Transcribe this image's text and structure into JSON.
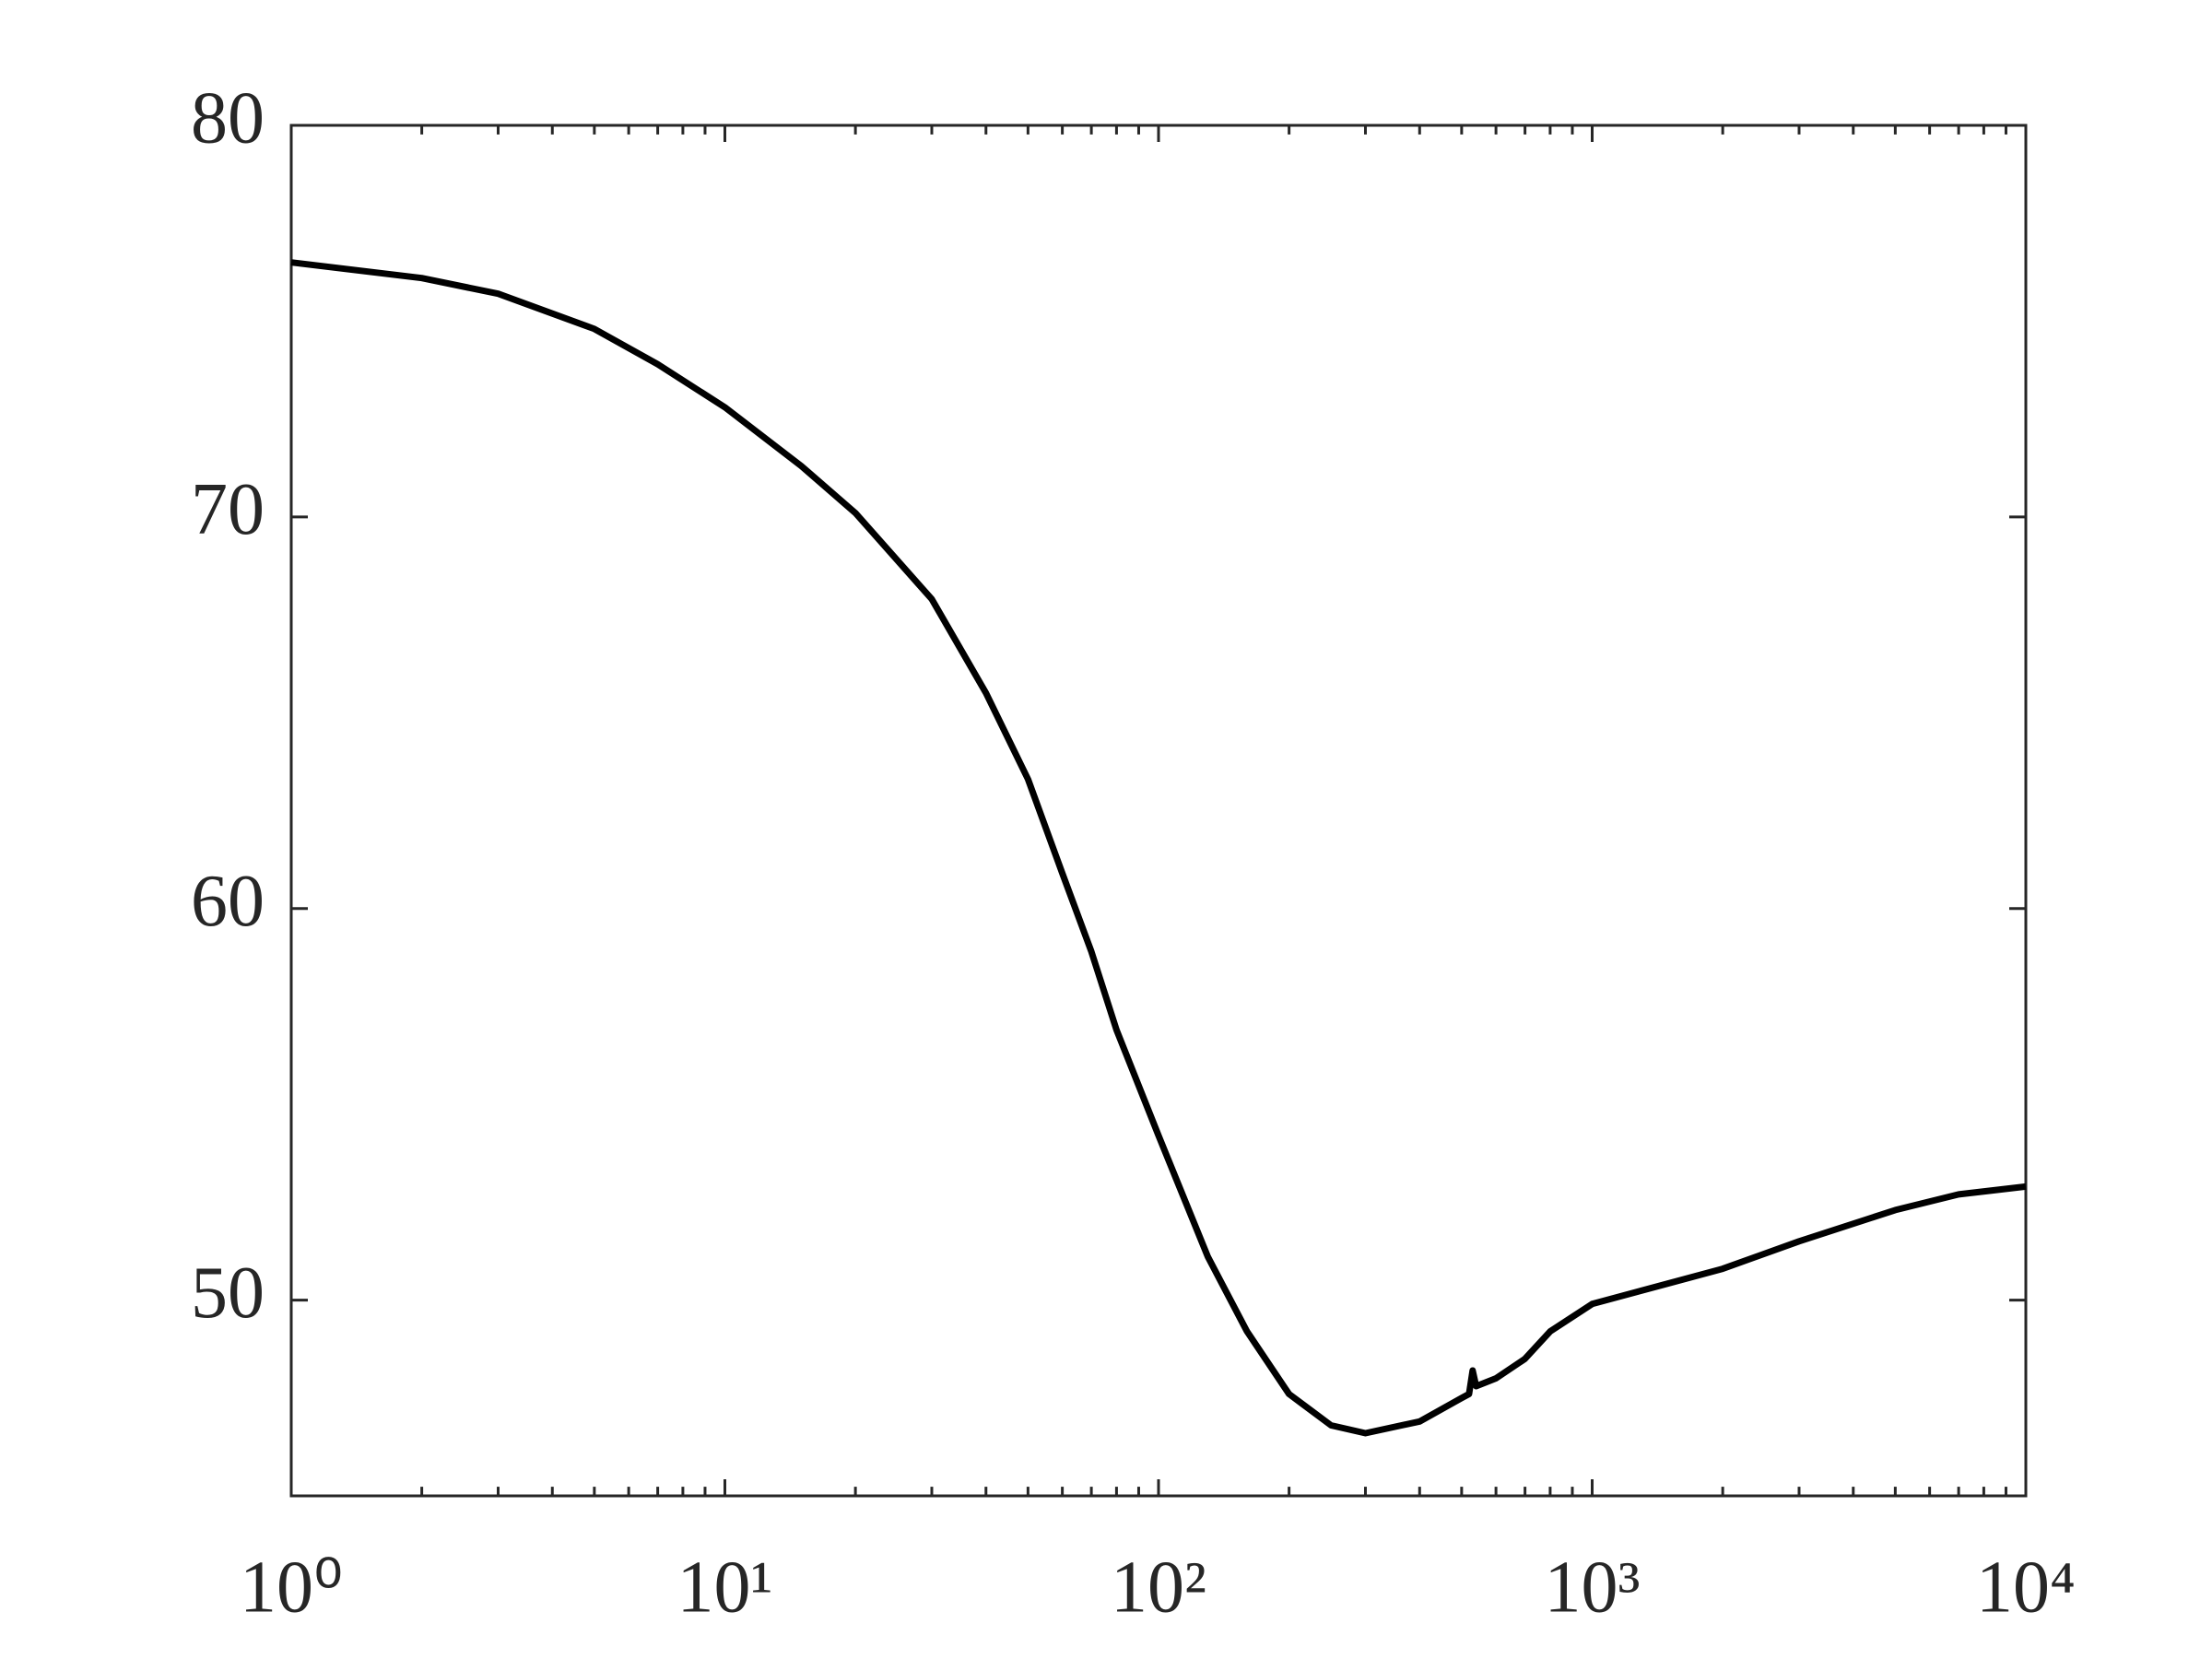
{
  "chart_data": {
    "type": "line",
    "xscale": "log",
    "x": [
      1,
      2,
      3,
      5,
      7,
      10,
      15,
      20,
      30,
      40,
      50,
      60,
      70,
      80,
      100,
      130,
      160,
      200,
      250,
      300,
      400,
      500,
      520,
      530,
      540,
      600,
      700,
      800,
      1000,
      2000,
      3000,
      5000,
      7000,
      10000
    ],
    "series": [
      {
        "color": "#000000",
        "values": [
          76.5,
          76.1,
          75.7,
          74.8,
          73.9,
          72.8,
          71.3,
          70.1,
          67.9,
          65.5,
          63.3,
          60.9,
          58.9,
          56.9,
          54.2,
          51.1,
          49.2,
          47.6,
          46.8,
          46.6,
          46.9,
          47.5,
          47.6,
          48.2,
          47.8,
          48.0,
          48.5,
          49.2,
          49.9,
          50.8,
          51.5,
          52.3,
          52.7,
          52.9
        ]
      }
    ],
    "xlim": [
      1,
      10000
    ],
    "xticks": [
      {
        "value": 1,
        "label": "10⁰"
      },
      {
        "value": 10,
        "label": "10¹"
      },
      {
        "value": 100,
        "label": "10²"
      },
      {
        "value": 1000,
        "label": "10³"
      },
      {
        "value": 10000,
        "label": "10⁴"
      }
    ],
    "ylim": [
      45,
      80
    ],
    "yticks": [
      50,
      60,
      70,
      80
    ]
  }
}
